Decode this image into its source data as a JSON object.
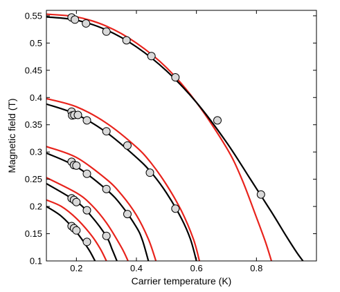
{
  "chart_data": {
    "type": "scatter",
    "title": "",
    "xlabel": "Carrier temperature (K)",
    "ylabel": "Magnetic field (T)",
    "xlim": [
      0.1,
      1.0
    ],
    "ylim": [
      0.1,
      0.56
    ],
    "grid": false,
    "legend": "none",
    "x_ticks": [
      0.2,
      0.4,
      0.6,
      0.8
    ],
    "x_tick_labels": [
      "0.2",
      "0.4",
      "0.6",
      "0.8"
    ],
    "y_ticks": [
      0.1,
      0.15,
      0.2,
      0.25,
      0.3,
      0.35,
      0.4,
      0.45,
      0.5,
      0.55
    ],
    "y_tick_labels": [
      "0.1",
      "0.15",
      "0.2",
      "0.25",
      "0.3",
      "0.35",
      "0.4",
      "0.45",
      "0.5",
      "0.55"
    ],
    "colors": {
      "black_curve": "#000000",
      "red_curve": "#e8231c",
      "marker_fill": "#d9d9d9",
      "marker_edge": "#000000"
    },
    "datasets": [
      {
        "markers": [
          [
            0.184,
            0.547
          ],
          [
            0.195,
            0.543
          ],
          [
            0.232,
            0.536
          ],
          [
            0.3,
            0.521
          ],
          [
            0.367,
            0.505
          ],
          [
            0.45,
            0.476
          ],
          [
            0.53,
            0.437
          ],
          [
            0.67,
            0.358
          ],
          [
            0.815,
            0.222
          ]
        ],
        "black_curve": [
          [
            0.1,
            0.548
          ],
          [
            0.2,
            0.542
          ],
          [
            0.3,
            0.524
          ],
          [
            0.4,
            0.493
          ],
          [
            0.5,
            0.449
          ],
          [
            0.6,
            0.391
          ],
          [
            0.7,
            0.318
          ],
          [
            0.78,
            0.25
          ],
          [
            0.85,
            0.19
          ],
          [
            0.9,
            0.145
          ],
          [
            0.935,
            0.115
          ],
          [
            0.955,
            0.1
          ]
        ],
        "red_curve": [
          [
            0.1,
            0.553
          ],
          [
            0.2,
            0.548
          ],
          [
            0.3,
            0.531
          ],
          [
            0.4,
            0.5
          ],
          [
            0.5,
            0.455
          ],
          [
            0.6,
            0.391
          ],
          [
            0.7,
            0.308
          ],
          [
            0.75,
            0.252
          ],
          [
            0.8,
            0.18
          ],
          [
            0.83,
            0.135
          ],
          [
            0.85,
            0.1
          ]
        ]
      },
      {
        "markers": [
          [
            0.184,
            0.374
          ],
          [
            0.186,
            0.367
          ],
          [
            0.193,
            0.368
          ],
          [
            0.205,
            0.368
          ],
          [
            0.235,
            0.358
          ],
          [
            0.3,
            0.338
          ],
          [
            0.37,
            0.312
          ],
          [
            0.445,
            0.262
          ],
          [
            0.53,
            0.196
          ]
        ],
        "black_curve": [
          [
            0.1,
            0.388
          ],
          [
            0.2,
            0.369
          ],
          [
            0.3,
            0.336
          ],
          [
            0.4,
            0.29
          ],
          [
            0.45,
            0.262
          ],
          [
            0.5,
            0.225
          ],
          [
            0.55,
            0.178
          ],
          [
            0.58,
            0.14
          ],
          [
            0.6,
            0.1
          ]
        ],
        "red_curve": [
          [
            0.1,
            0.398
          ],
          [
            0.2,
            0.383
          ],
          [
            0.3,
            0.353
          ],
          [
            0.4,
            0.309
          ],
          [
            0.45,
            0.279
          ],
          [
            0.5,
            0.24
          ],
          [
            0.55,
            0.192
          ],
          [
            0.59,
            0.14
          ],
          [
            0.61,
            0.1
          ]
        ]
      },
      {
        "markers": [
          [
            0.184,
            0.282
          ],
          [
            0.192,
            0.276
          ],
          [
            0.2,
            0.275
          ],
          [
            0.235,
            0.26
          ],
          [
            0.3,
            0.232
          ],
          [
            0.37,
            0.186
          ]
        ],
        "black_curve": [
          [
            0.1,
            0.298
          ],
          [
            0.2,
            0.273
          ],
          [
            0.3,
            0.231
          ],
          [
            0.35,
            0.202
          ],
          [
            0.4,
            0.162
          ],
          [
            0.42,
            0.138
          ],
          [
            0.44,
            0.1
          ]
        ],
        "red_curve": [
          [
            0.1,
            0.31
          ],
          [
            0.2,
            0.29
          ],
          [
            0.3,
            0.25
          ],
          [
            0.35,
            0.222
          ],
          [
            0.4,
            0.184
          ],
          [
            0.44,
            0.14
          ],
          [
            0.465,
            0.1
          ]
        ]
      },
      {
        "markers": [
          [
            0.184,
            0.215
          ],
          [
            0.192,
            0.212
          ],
          [
            0.2,
            0.208
          ],
          [
            0.235,
            0.193
          ],
          [
            0.3,
            0.146
          ]
        ],
        "black_curve": [
          [
            0.1,
            0.242
          ],
          [
            0.2,
            0.209
          ],
          [
            0.25,
            0.182
          ],
          [
            0.3,
            0.145
          ],
          [
            0.32,
            0.12
          ],
          [
            0.335,
            0.1
          ]
        ],
        "red_curve": [
          [
            0.1,
            0.253
          ],
          [
            0.2,
            0.225
          ],
          [
            0.25,
            0.203
          ],
          [
            0.3,
            0.17
          ],
          [
            0.35,
            0.125
          ],
          [
            0.372,
            0.1
          ]
        ]
      },
      {
        "markers": [
          [
            0.184,
            0.164
          ],
          [
            0.192,
            0.16
          ],
          [
            0.2,
            0.156
          ],
          [
            0.235,
            0.135
          ]
        ],
        "black_curve": [
          [
            0.1,
            0.2
          ],
          [
            0.15,
            0.182
          ],
          [
            0.2,
            0.153
          ],
          [
            0.24,
            0.122
          ],
          [
            0.262,
            0.1
          ]
        ],
        "red_curve": [
          [
            0.1,
            0.212
          ],
          [
            0.15,
            0.2
          ],
          [
            0.2,
            0.178
          ],
          [
            0.25,
            0.147
          ],
          [
            0.28,
            0.122
          ],
          [
            0.3,
            0.1
          ]
        ]
      }
    ]
  }
}
